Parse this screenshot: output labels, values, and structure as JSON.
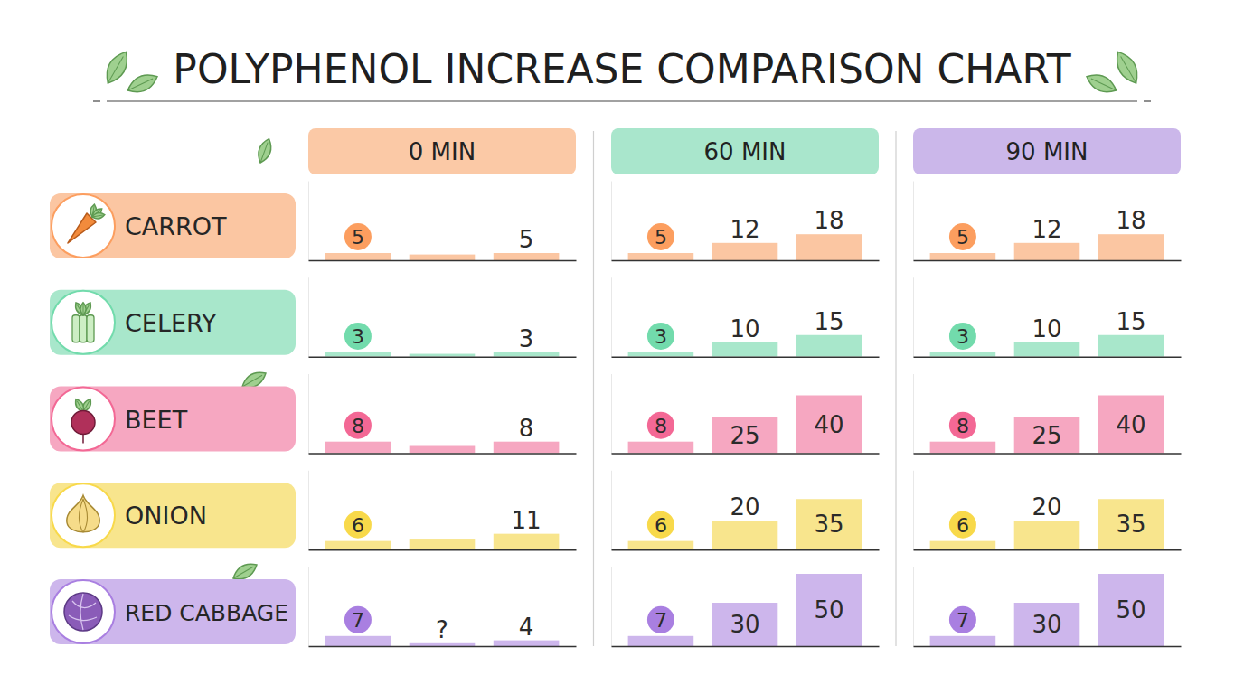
{
  "chart_data": {
    "type": "bar",
    "title": "POLYPHENOL INCREASE COMPARISON CHART",
    "categories": [
      "CARROT",
      "CELERY",
      "BEET",
      "ONION",
      "RED CABBAGE"
    ],
    "colors": [
      "#fbc6a2",
      "#a8e7cb",
      "#f6a7c1",
      "#f8e58d",
      "#cdb6ec"
    ],
    "ylim": [
      0,
      55
    ],
    "tick_labels": false,
    "data_labels": true,
    "panels": [
      {
        "title": "0 MIN",
        "color": "#fbc9a6",
        "series": [
          {
            "values": [
              5,
              3,
              8,
              6,
              7
            ]
          },
          {
            "values": [
              4,
              2,
              5,
              7,
              2
            ],
            "value_labels": [
              null,
              null,
              null,
              null,
              "?"
            ]
          },
          {
            "values": [
              5,
              3,
              8,
              11,
              4
            ]
          }
        ]
      },
      {
        "title": "60 MIN",
        "color": "#a9e6cc",
        "series": [
          {
            "values": [
              5,
              3,
              8,
              6,
              7
            ]
          },
          {
            "values": [
              12,
              10,
              25,
              20,
              30
            ]
          },
          {
            "values": [
              18,
              15,
              40,
              35,
              50
            ]
          }
        ]
      },
      {
        "title": "90 MIN",
        "color": "#cbb7ea",
        "series": [
          {
            "values": [
              5,
              3,
              8,
              6,
              7
            ]
          },
          {
            "values": [
              12,
              10,
              25,
              20,
              30
            ]
          },
          {
            "values": [
              18,
              15,
              40,
              35,
              50
            ]
          }
        ]
      }
    ]
  }
}
